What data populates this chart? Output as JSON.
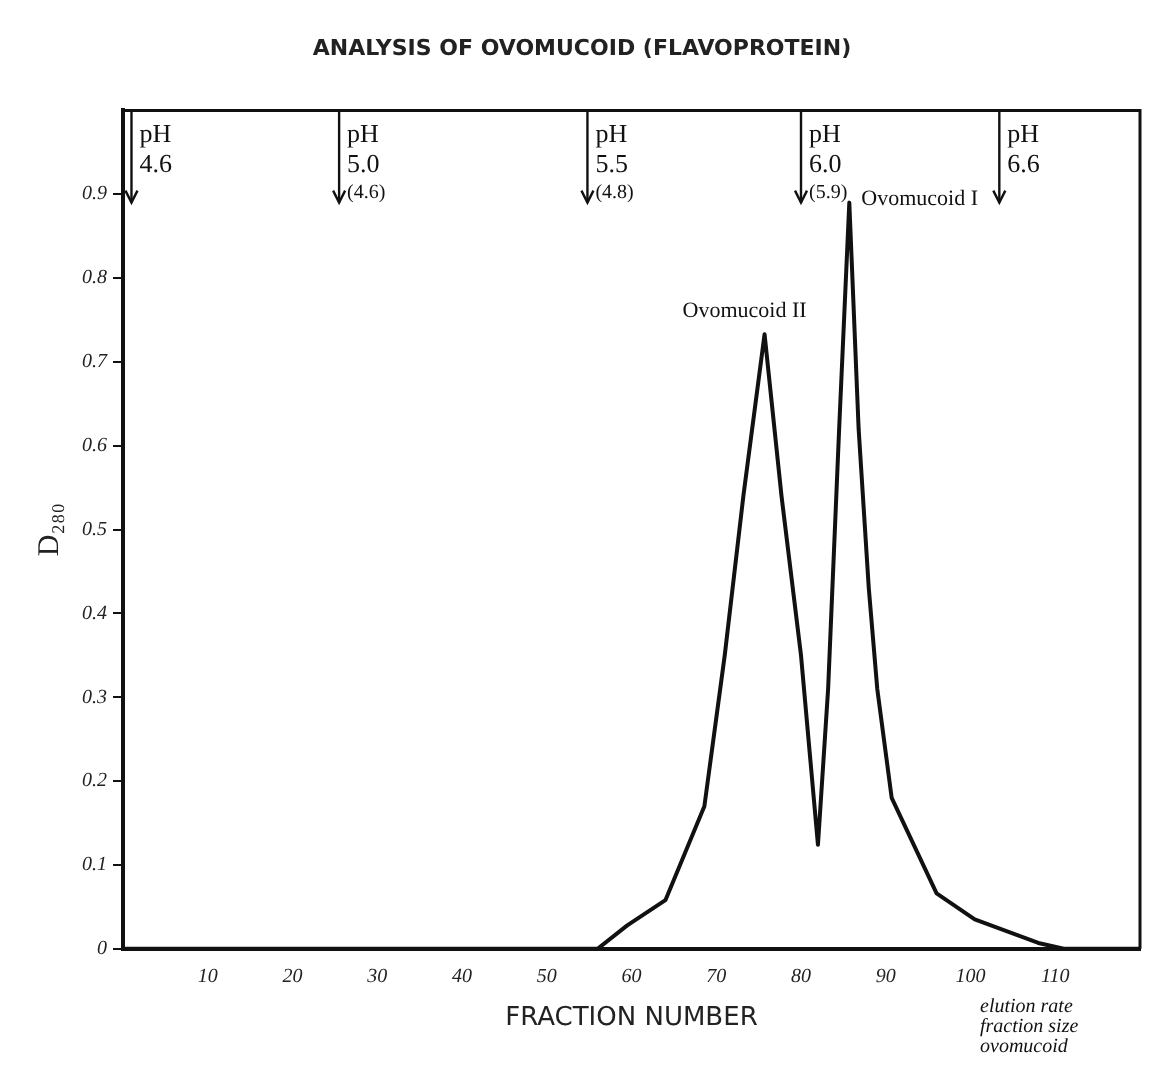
{
  "chart_data": {
    "type": "line",
    "title": "ANALYSIS OF OVOMUCOID (FLAVOPROTEIN)",
    "xlabel": "FRACTION NUMBER",
    "ylabel": "D₂₈₀",
    "series": [
      {
        "color": "#111111",
        "x": [
          0,
          56,
          59.5,
          64,
          68.6,
          71,
          73.2,
          75.7,
          77.7,
          80,
          82,
          83.2,
          84.5,
          85.7,
          86.8,
          88,
          89,
          90.7,
          96,
          100.5,
          108,
          111,
          120
        ],
        "values": [
          0,
          0,
          0.028,
          0.058,
          0.17,
          0.35,
          0.54,
          0.733,
          0.54,
          0.35,
          0.124,
          0.31,
          0.62,
          0.89,
          0.62,
          0.43,
          0.31,
          0.18,
          0.066,
          0.035,
          0.007,
          0,
          0
        ]
      }
    ],
    "xlim": [
      0,
      120
    ],
    "xticks": [
      10,
      20,
      30,
      40,
      50,
      60,
      70,
      80,
      90,
      100,
      110
    ],
    "ylim": [
      0,
      1
    ],
    "yticks": [
      0,
      0.1,
      0.2,
      0.3,
      0.4,
      0.5,
      0.6,
      0.7,
      0.8,
      0.9
    ],
    "ref_lines": [
      {
        "axis": "x",
        "value": 1,
        "label": "pH\n4.6"
      },
      {
        "axis": "x",
        "value": 25.5,
        "label": "pH\n5.0\n(4.6)"
      },
      {
        "axis": "x",
        "value": 54.8,
        "label": "pH\n5.5\n(4.8)"
      },
      {
        "axis": "x",
        "value": 80,
        "label": "pH\n6.0\n(5.9)"
      },
      {
        "axis": "x",
        "value": 103.4,
        "label": "pH\n6.6"
      }
    ],
    "annotations": [
      {
        "text": "Ovomucoid II",
        "x": 75.7,
        "y": 0.733
      },
      {
        "text": "Ovomucoid I",
        "x": 85.7,
        "y": 0.89
      },
      "elution rate",
      "fraction size",
      "ovomucoid"
    ],
    "grid": false,
    "legend": false,
    "marker": "none",
    "line_style": "solid"
  }
}
